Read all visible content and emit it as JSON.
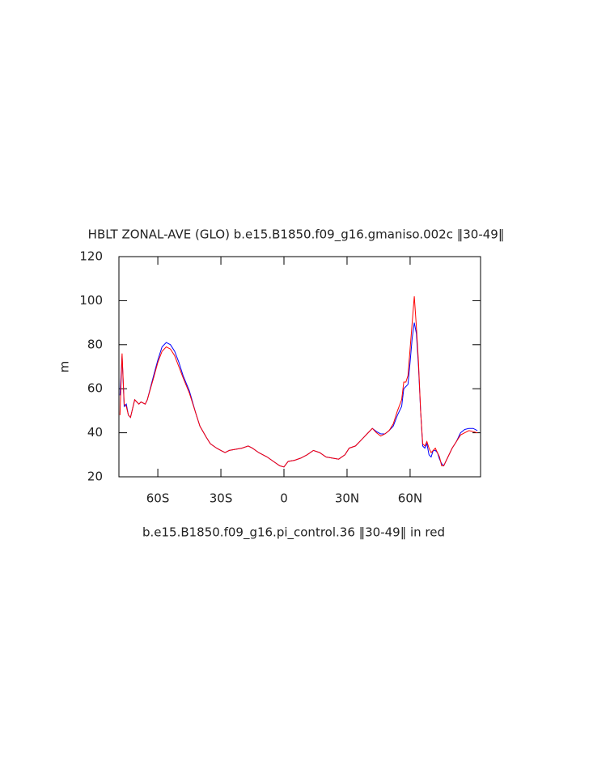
{
  "chart_data": {
    "type": "line",
    "title": "HBLT ZONAL-AVE (GLO) b.e15.B1850.f09_g16.gmaniso.002c ‖30-49‖",
    "subtitle": "b.e15.B1850.f09_g16.pi_control.36 ‖30-49‖ in red",
    "y_label": "m",
    "xlim": [
      -78.5,
      93.5
    ],
    "xticks": [
      {
        "value": -60,
        "label": "60S"
      },
      {
        "value": -30,
        "label": "30S"
      },
      0,
      {
        "value": 30,
        "label": "30N"
      },
      {
        "value": 60,
        "label": "60N"
      }
    ],
    "ylim": [
      20,
      120
    ],
    "yticks": [
      20,
      40,
      60,
      80,
      100,
      120
    ],
    "x": [
      -78,
      -77,
      -76,
      -75,
      -74,
      -73,
      -71,
      -70,
      -69,
      -68,
      -66,
      -65,
      -62,
      -60,
      -58,
      -56,
      -54,
      -52,
      -50,
      -48,
      -45,
      -42,
      -40,
      -37,
      -35,
      -32,
      -30,
      -28,
      -26,
      -23,
      -20,
      -17,
      -15,
      -12,
      -8,
      -5,
      -2,
      0,
      2,
      5,
      8,
      11,
      14,
      17,
      20,
      23,
      26,
      29,
      31,
      34,
      37,
      40,
      42,
      44,
      46,
      48,
      50,
      52,
      54,
      56,
      57,
      58,
      59,
      60,
      61,
      62,
      63,
      64,
      65,
      66,
      67,
      68,
      69,
      70,
      71,
      72,
      73,
      74,
      75,
      76,
      78,
      80,
      82,
      84,
      86,
      88,
      90,
      92
    ],
    "series": [
      {
        "color": "#0000ff",
        "values": [
          57,
          75,
          52,
          53,
          48,
          47,
          55,
          54,
          53,
          54,
          53,
          55,
          66,
          73,
          79,
          81,
          80,
          77,
          72,
          66,
          59,
          49,
          43,
          38,
          35,
          33,
          32,
          31,
          32,
          32.5,
          33,
          34,
          33,
          31,
          29,
          27,
          25,
          24.5,
          27,
          27.5,
          28.5,
          30,
          32,
          31,
          29,
          28.5,
          28,
          30,
          33,
          34,
          37,
          40,
          42,
          40.5,
          39.5,
          39.5,
          41,
          43,
          48,
          52,
          60,
          61,
          62,
          72,
          83,
          90,
          85,
          70,
          50,
          34,
          33,
          35,
          30,
          29,
          32,
          32,
          31,
          28,
          26,
          25,
          29,
          33,
          36,
          40,
          41.5,
          42,
          42,
          41
        ]
      },
      {
        "color": "#ff0000",
        "values": [
          48,
          76,
          53,
          52,
          48,
          47,
          55,
          54,
          53,
          54,
          53,
          55,
          65,
          72,
          77,
          79,
          78,
          75,
          70,
          65,
          58,
          49,
          43,
          38,
          35,
          33,
          32,
          31,
          32,
          32.5,
          33,
          34,
          33,
          31,
          29,
          27,
          25,
          24.5,
          27,
          27.5,
          28.5,
          30,
          32,
          31,
          29,
          28.5,
          28,
          30,
          33,
          34,
          37,
          40,
          42,
          40,
          38.5,
          39.5,
          41,
          44,
          50,
          55,
          63,
          63,
          66,
          78,
          90,
          102,
          88,
          72,
          50,
          35,
          34,
          36,
          33,
          31,
          32,
          33,
          31,
          29,
          25,
          25,
          29,
          33,
          36,
          39,
          40,
          41,
          40.5,
          40
        ]
      }
    ]
  }
}
